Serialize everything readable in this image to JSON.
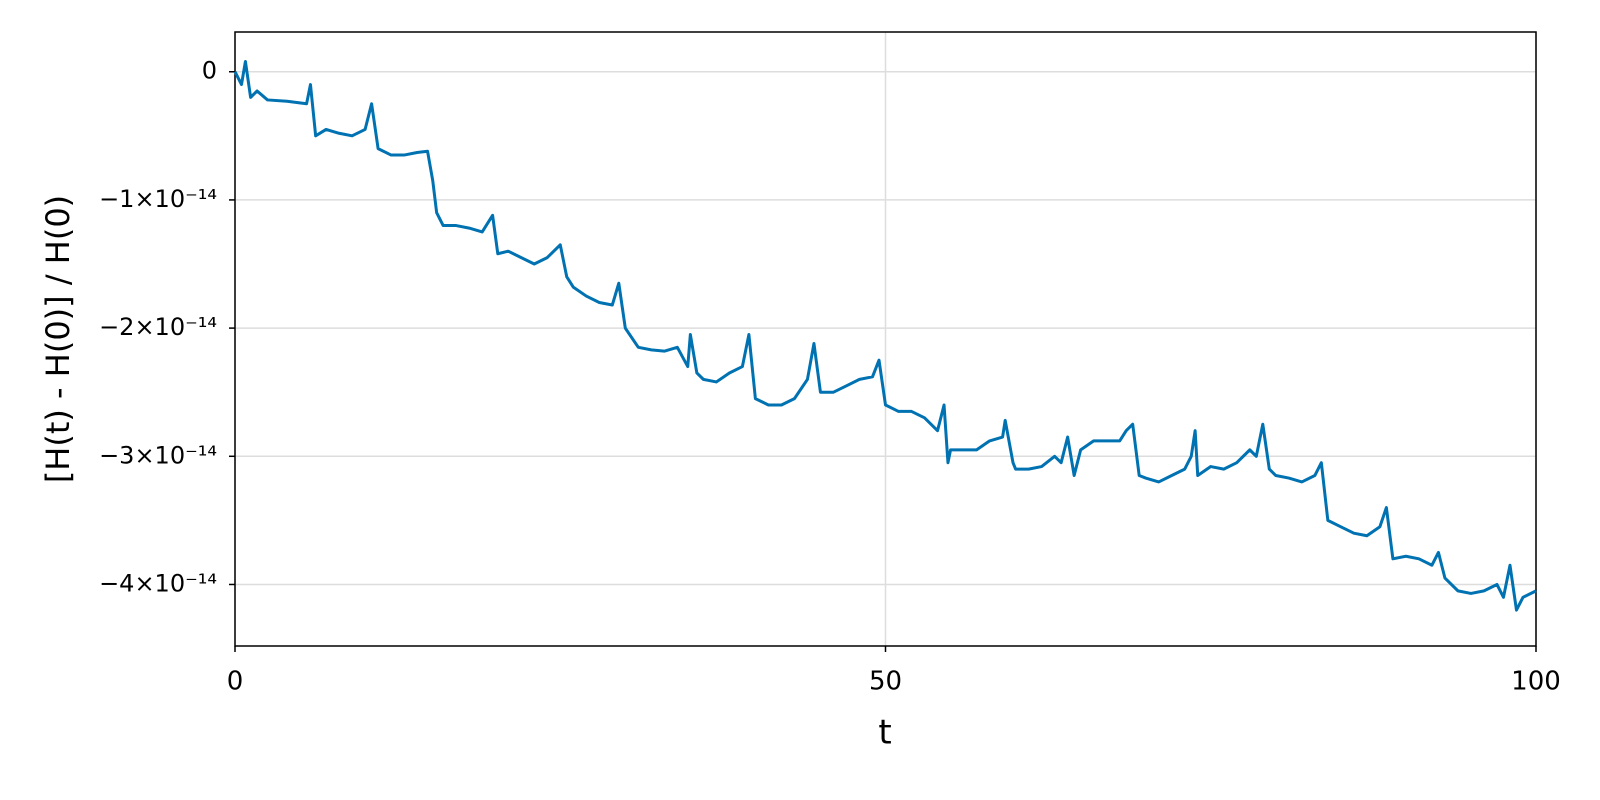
{
  "chart_data": {
    "type": "line",
    "xlabel": "t",
    "ylabel": "[H(t) - H(0)] / H(0)",
    "color": "#0072b2",
    "grid": true,
    "xlim": [
      0,
      100
    ],
    "xticks": [
      0,
      50,
      100
    ],
    "ylim": [
      -4.48e-14,
      3.1e-15
    ],
    "yticks": [
      0,
      {
        "value": -1e-14,
        "label": "−1×10⁻¹⁴"
      },
      {
        "value": -2e-14,
        "label": "−2×10⁻¹⁴"
      },
      {
        "value": -3e-14,
        "label": "−3×10⁻¹⁴"
      },
      {
        "value": -4e-14,
        "label": "−4×10⁻¹⁴"
      }
    ],
    "x": [
      0,
      0.5,
      0.8,
      1.2,
      1.7,
      2.5,
      4,
      5.5,
      5.8,
      6.2,
      7,
      8,
      9,
      10,
      10.5,
      11,
      12,
      13,
      14,
      14.8,
      15.2,
      15.5,
      16,
      17,
      18,
      19,
      19.8,
      20.2,
      21,
      22,
      23,
      24,
      25,
      25.5,
      26,
      27,
      28,
      29,
      29.5,
      30,
      31,
      32,
      33,
      34,
      34.8,
      35,
      35.5,
      36,
      37,
      38,
      39,
      39.5,
      40,
      41,
      42,
      43,
      44,
      44.5,
      45,
      46,
      47,
      48,
      49,
      49.5,
      50,
      51,
      52,
      53,
      54,
      54.5,
      54.8,
      55,
      56,
      57,
      58,
      59,
      59.2,
      59.8,
      60,
      61,
      62,
      63,
      63.5,
      64,
      64.5,
      65,
      66,
      67,
      68,
      68.5,
      69,
      69.5,
      70,
      71,
      72,
      73,
      73.5,
      73.8,
      74,
      75,
      76,
      77,
      78,
      78.5,
      79,
      79.5,
      80,
      81,
      82,
      83,
      83.5,
      84,
      85,
      86,
      87,
      88,
      88.5,
      89,
      90,
      91,
      92,
      92.5,
      93,
      94,
      95,
      96,
      97,
      97.5,
      98,
      98.5,
      99,
      100
    ],
    "values": [
      0,
      -1e-15,
      8e-16,
      -2e-15,
      -1.5e-15,
      -2.2e-15,
      -2.3e-15,
      -2.5e-15,
      -1e-15,
      -5e-15,
      -4.5e-15,
      -4.8e-15,
      -5e-15,
      -4.5e-15,
      -2.5e-15,
      -6e-15,
      -6.5e-15,
      -6.5e-15,
      -6.3e-15,
      -6.2e-15,
      -8.5e-15,
      -1.1e-14,
      -1.2e-14,
      -1.2e-14,
      -1.22e-14,
      -1.25e-14,
      -1.12e-14,
      -1.42e-14,
      -1.4e-14,
      -1.45e-14,
      -1.5e-14,
      -1.45e-14,
      -1.35e-14,
      -1.6e-14,
      -1.68e-14,
      -1.75e-14,
      -1.8e-14,
      -1.82e-14,
      -1.65e-14,
      -2e-14,
      -2.15e-14,
      -2.17e-14,
      -2.18e-14,
      -2.15e-14,
      -2.3e-14,
      -2.05e-14,
      -2.35e-14,
      -2.4e-14,
      -2.42e-14,
      -2.35e-14,
      -2.3e-14,
      -2.05e-14,
      -2.55e-14,
      -2.6e-14,
      -2.6e-14,
      -2.55e-14,
      -2.4e-14,
      -2.12e-14,
      -2.5e-14,
      -2.5e-14,
      -2.45e-14,
      -2.4e-14,
      -2.38e-14,
      -2.25e-14,
      -2.6e-14,
      -2.65e-14,
      -2.65e-14,
      -2.7e-14,
      -2.8e-14,
      -2.6e-14,
      -3.05e-14,
      -2.95e-14,
      -2.95e-14,
      -2.95e-14,
      -2.88e-14,
      -2.85e-14,
      -2.72e-14,
      -3.05e-14,
      -3.1e-14,
      -3.1e-14,
      -3.08e-14,
      -3e-14,
      -3.05e-14,
      -2.85e-14,
      -3.15e-14,
      -2.95e-14,
      -2.88e-14,
      -2.88e-14,
      -2.88e-14,
      -2.8e-14,
      -2.75e-14,
      -3.15e-14,
      -3.17e-14,
      -3.2e-14,
      -3.15e-14,
      -3.1e-14,
      -3e-14,
      -2.8e-14,
      -3.15e-14,
      -3.08e-14,
      -3.1e-14,
      -3.05e-14,
      -2.95e-14,
      -3e-14,
      -2.75e-14,
      -3.1e-14,
      -3.15e-14,
      -3.17e-14,
      -3.2e-14,
      -3.15e-14,
      -3.05e-14,
      -3.5e-14,
      -3.55e-14,
      -3.6e-14,
      -3.62e-14,
      -3.55e-14,
      -3.4e-14,
      -3.8e-14,
      -3.78e-14,
      -3.8e-14,
      -3.85e-14,
      -3.75e-14,
      -3.95e-14,
      -4.05e-14,
      -4.07e-14,
      -4.05e-14,
      -4e-14,
      -4.1e-14,
      -3.85e-14,
      -4.2e-14,
      -4.1e-14,
      -4.05e-14
    ]
  }
}
